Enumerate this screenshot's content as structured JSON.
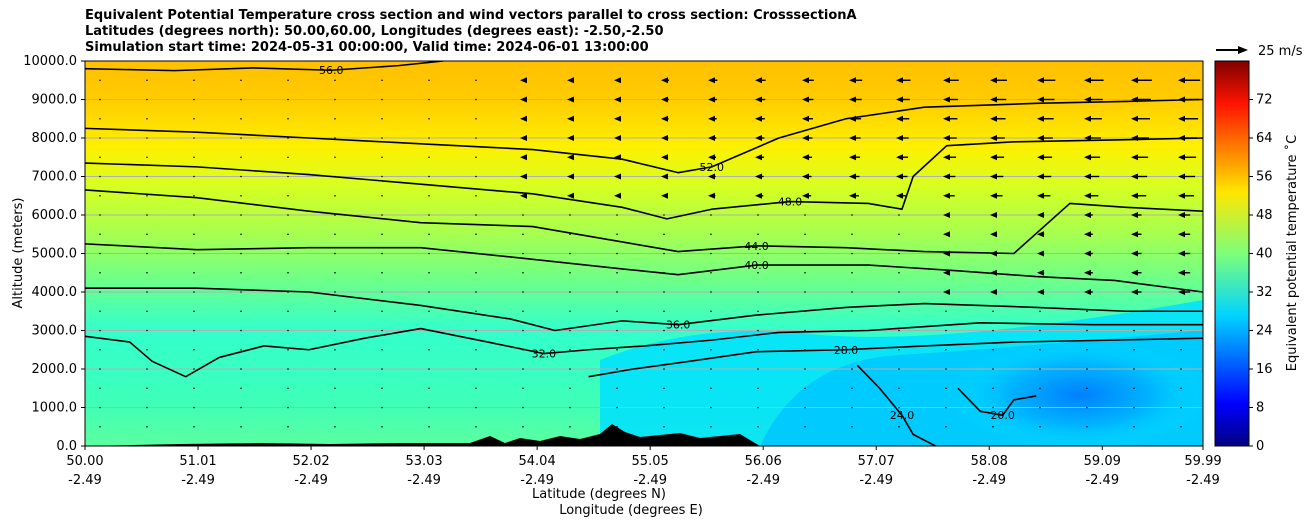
{
  "chart_data": {
    "type": "contour",
    "title": [
      "Equivalent Potential Temperature cross section and wind vectors parallel to cross section: CrosssectionA",
      "Latitudes (degrees north): 50.00,60.00, Longitudes (degrees east): -2.50,-2.50",
      "Simulation start time: 2024-05-31 00:00:00, Valid time: 2024-06-01 13:00:00"
    ],
    "xlabel": "Latitude (degrees N)",
    "xlabel2": "Longitude (degrees E)",
    "ylabel": "Altitude (meters)",
    "xlim": [
      50.0,
      59.99
    ],
    "ylim": [
      0,
      10000
    ],
    "x_ticks": [
      {
        "lat": 50.0,
        "label": "50.00",
        "lon_label": "-2.49"
      },
      {
        "lat": 51.01,
        "label": "51.01",
        "lon_label": "-2.49"
      },
      {
        "lat": 52.02,
        "label": "52.02",
        "lon_label": "-2.49"
      },
      {
        "lat": 53.03,
        "label": "53.03",
        "lon_label": "-2.49"
      },
      {
        "lat": 54.04,
        "label": "54.04",
        "lon_label": "-2.49"
      },
      {
        "lat": 55.05,
        "label": "55.05",
        "lon_label": "-2.49"
      },
      {
        "lat": 56.06,
        "label": "56.06",
        "lon_label": "-2.49"
      },
      {
        "lat": 57.07,
        "label": "57.07",
        "lon_label": "-2.49"
      },
      {
        "lat": 58.08,
        "label": "58.08",
        "lon_label": "-2.49"
      },
      {
        "lat": 59.09,
        "label": "59.09",
        "lon_label": "-2.49"
      },
      {
        "lat": 59.99,
        "label": "59.99",
        "lon_label": "-2.49"
      }
    ],
    "y_ticks": [
      {
        "value": 0,
        "label": "0.0"
      },
      {
        "value": 1000,
        "label": "1000.0"
      },
      {
        "value": 2000,
        "label": "2000.0"
      },
      {
        "value": 3000,
        "label": "3000.0"
      },
      {
        "value": 4000,
        "label": "4000.0"
      },
      {
        "value": 5000,
        "label": "5000.0"
      },
      {
        "value": 6000,
        "label": "6000.0"
      },
      {
        "value": 7000,
        "label": "7000.0"
      },
      {
        "value": 8000,
        "label": "8000.0"
      },
      {
        "value": 9000,
        "label": "9000.0"
      },
      {
        "value": 10000,
        "label": "10000.0"
      }
    ],
    "grid": true,
    "colorbar": {
      "label": "Equivalent potential temperature ˚C",
      "range": [
        0,
        80
      ],
      "ticks": [
        "0",
        "8",
        "16",
        "24",
        "32",
        "40",
        "48",
        "56",
        "64",
        "72"
      ],
      "tick_values": [
        0,
        8,
        16,
        24,
        32,
        40,
        48,
        56,
        64,
        72
      ],
      "colormap": "jet"
    },
    "quiver_key": {
      "label": "25 m/s",
      "speed": 25
    },
    "contour_levels": [
      {
        "value": 56,
        "label": "56.0",
        "points": [
          [
            50.0,
            9800
          ],
          [
            50.8,
            9750
          ],
          [
            51.5,
            9820
          ],
          [
            52.2,
            9760
          ],
          [
            52.8,
            9880
          ],
          [
            53.2,
            10000
          ]
        ]
      },
      {
        "value": 52,
        "label": "52.0",
        "points": [
          [
            50.0,
            8250
          ],
          [
            51.0,
            8150
          ],
          [
            52.0,
            8000
          ],
          [
            53.0,
            7850
          ],
          [
            54.0,
            7700
          ],
          [
            54.8,
            7450
          ],
          [
            55.3,
            7100
          ],
          [
            55.6,
            7250
          ],
          [
            56.2,
            8000
          ],
          [
            56.8,
            8500
          ],
          [
            57.5,
            8800
          ],
          [
            58.5,
            8900
          ],
          [
            59.3,
            8950
          ],
          [
            59.99,
            9000
          ]
        ]
      },
      {
        "value": 48,
        "label": "48.0",
        "points": [
          [
            50.0,
            7350
          ],
          [
            51.0,
            7250
          ],
          [
            52.0,
            7050
          ],
          [
            53.0,
            6800
          ],
          [
            54.0,
            6550
          ],
          [
            54.8,
            6200
          ],
          [
            55.2,
            5900
          ],
          [
            55.6,
            6150
          ],
          [
            56.3,
            6350
          ],
          [
            57.0,
            6300
          ],
          [
            57.3,
            6150
          ],
          [
            57.4,
            7000
          ],
          [
            57.7,
            7800
          ],
          [
            58.3,
            7900
          ],
          [
            59.2,
            7950
          ],
          [
            59.99,
            8000
          ]
        ]
      },
      {
        "value": 44,
        "label": "44.0",
        "points": [
          [
            50.0,
            6650
          ],
          [
            51.0,
            6450
          ],
          [
            52.0,
            6100
          ],
          [
            53.0,
            5800
          ],
          [
            54.0,
            5700
          ],
          [
            54.8,
            5300
          ],
          [
            55.3,
            5050
          ],
          [
            56.0,
            5200
          ],
          [
            56.8,
            5150
          ],
          [
            57.5,
            5050
          ],
          [
            58.3,
            5000
          ],
          [
            58.8,
            6300
          ],
          [
            59.3,
            6200
          ],
          [
            59.99,
            6100
          ]
        ]
      },
      {
        "value": 40,
        "label": "40.0",
        "points": [
          [
            50.0,
            5250
          ],
          [
            51.0,
            5100
          ],
          [
            52.0,
            5150
          ],
          [
            53.0,
            5150
          ],
          [
            54.0,
            4850
          ],
          [
            54.8,
            4600
          ],
          [
            55.3,
            4450
          ],
          [
            56.0,
            4700
          ],
          [
            57.0,
            4700
          ],
          [
            57.8,
            4550
          ],
          [
            58.5,
            4400
          ],
          [
            59.2,
            4300
          ],
          [
            59.99,
            4000
          ]
        ]
      },
      {
        "value": 36,
        "label": "36.0",
        "points": [
          [
            50.0,
            4100
          ],
          [
            51.0,
            4100
          ],
          [
            52.0,
            4000
          ],
          [
            53.0,
            3650
          ],
          [
            53.8,
            3300
          ],
          [
            54.2,
            3000
          ],
          [
            54.8,
            3250
          ],
          [
            55.3,
            3150
          ],
          [
            56.0,
            3400
          ],
          [
            56.8,
            3600
          ],
          [
            57.5,
            3700
          ],
          [
            58.5,
            3600
          ],
          [
            59.3,
            3500
          ],
          [
            59.99,
            3500
          ]
        ]
      },
      {
        "value": 32,
        "label": "32.0",
        "points": [
          [
            50.0,
            2850
          ],
          [
            50.4,
            2700
          ],
          [
            50.6,
            2200
          ],
          [
            50.9,
            1800
          ],
          [
            51.2,
            2300
          ],
          [
            51.6,
            2600
          ],
          [
            52.0,
            2500
          ],
          [
            52.5,
            2800
          ],
          [
            53.0,
            3050
          ],
          [
            53.6,
            2700
          ],
          [
            54.1,
            2400
          ],
          [
            54.5,
            2500
          ],
          [
            55.0,
            2600
          ],
          [
            55.6,
            2750
          ],
          [
            56.2,
            2950
          ],
          [
            57.0,
            3000
          ],
          [
            58.0,
            3200
          ],
          [
            59.0,
            3150
          ],
          [
            59.99,
            3150
          ]
        ]
      },
      {
        "value": 28,
        "label": "28.0",
        "points": [
          [
            54.5,
            1800
          ],
          [
            54.9,
            2000
          ],
          [
            55.4,
            2200
          ],
          [
            56.0,
            2450
          ],
          [
            56.8,
            2500
          ],
          [
            57.5,
            2600
          ],
          [
            58.3,
            2700
          ],
          [
            59.2,
            2750
          ],
          [
            59.99,
            2800
          ]
        ]
      },
      {
        "value": 24,
        "label": "24.0",
        "points": [
          [
            56.9,
            2100
          ],
          [
            57.1,
            1500
          ],
          [
            57.3,
            800
          ],
          [
            57.4,
            300
          ],
          [
            57.6,
            0
          ]
        ]
      },
      {
        "value": 20,
        "label": "20.0",
        "points": [
          [
            57.8,
            1500
          ],
          [
            57.9,
            1200
          ],
          [
            58.0,
            900
          ],
          [
            58.2,
            800
          ],
          [
            58.3,
            1200
          ],
          [
            58.5,
            1300
          ]
        ]
      }
    ]
  }
}
